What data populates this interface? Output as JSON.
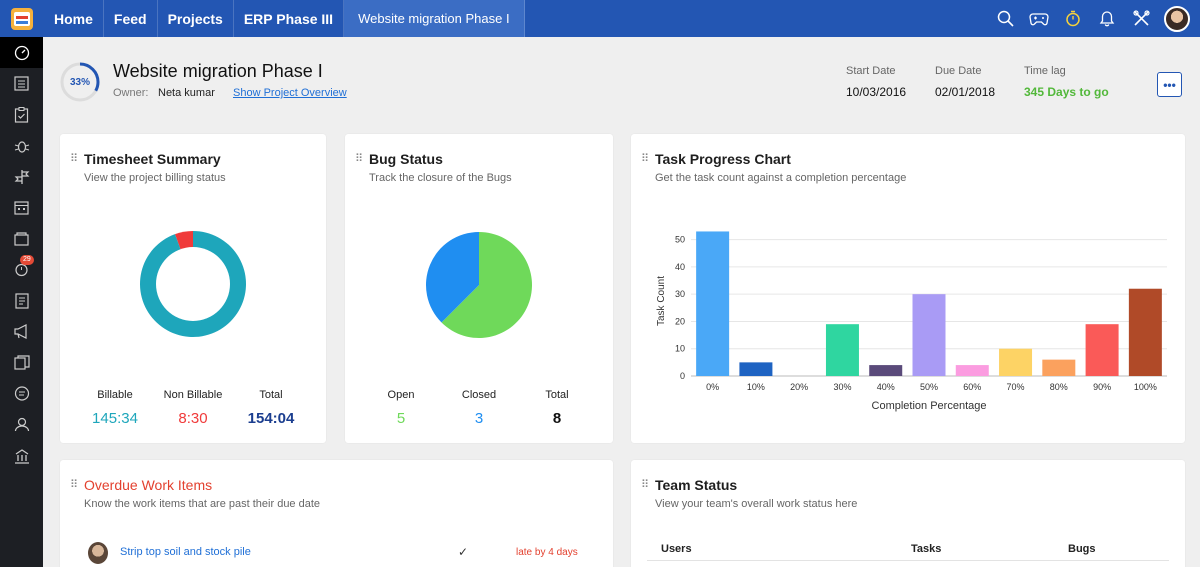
{
  "nav": {
    "items": [
      "Home",
      "Feed",
      "Projects",
      "ERP Phase III",
      "Website migration Phase I"
    ]
  },
  "topbar": {
    "icons": [
      "search-icon",
      "gamepad-icon",
      "timer-icon",
      "bell-icon",
      "tools-icon"
    ]
  },
  "sidebar": {
    "icons": [
      "dashboard-icon",
      "list-icon",
      "checklist-icon",
      "bug-icon",
      "milestone-icon",
      "calendar-icon",
      "folder-icon",
      "timer-icon",
      "invoice-icon",
      "announcement-icon",
      "documents-icon",
      "chat-icon",
      "users-icon",
      "reports-icon"
    ],
    "badge": "29"
  },
  "project": {
    "progress": 0.33,
    "progress_label": "33%",
    "title": "Website migration Phase I",
    "owner_label": "Owner:",
    "owner": "Neta kumar",
    "overview_link": "Show Project Overview",
    "start_label": "Start Date",
    "start": "10/03/2016",
    "due_label": "Due Date",
    "due": "02/01/2018",
    "lag_label": "Time lag",
    "lag": "345 Days to go",
    "more": "•••"
  },
  "timesheet": {
    "title": "Timesheet Summary",
    "subtitle": "View the project billing status",
    "billable_label": "Billable",
    "billable": "145:34",
    "nonbillable_label": "Non Billable",
    "nonbillable": "8:30",
    "total_label": "Total",
    "total": "154:04",
    "colors": {
      "billable": "#1ea6bb",
      "nonbillable": "#f03a3a",
      "total": "#1b3e8f"
    }
  },
  "bugs": {
    "title": "Bug Status",
    "subtitle": "Track the closure of the Bugs",
    "open_label": "Open",
    "open": "5",
    "closed_label": "Closed",
    "closed": "3",
    "total_label": "Total",
    "total": "8",
    "colors": {
      "open": "#6fd95a",
      "closed": "#1f8ef1"
    }
  },
  "task_chart": {
    "title": "Task Progress Chart",
    "subtitle": "Get the task count against a completion percentage"
  },
  "chart_data": {
    "type": "bar",
    "categories": [
      "0%",
      "10%",
      "20%",
      "30%",
      "40%",
      "50%",
      "60%",
      "70%",
      "80%",
      "90%",
      "100%"
    ],
    "values": [
      53,
      5,
      0,
      19,
      4,
      30,
      4,
      10,
      6,
      19,
      32
    ],
    "colors": [
      "#4aa8f7",
      "#1e63c2",
      "#cccccc",
      "#2fd6a0",
      "#5a4a7a",
      "#a99bf5",
      "#fb9ce0",
      "#fdd365",
      "#fba15e",
      "#fa5a58",
      "#b04a28"
    ],
    "xlabel": "Completion Percentage",
    "ylabel": "Task Count",
    "yticks": [
      "0",
      "10",
      "20",
      "30",
      "40",
      "50"
    ],
    "ylim": [
      0,
      55
    ],
    "grid": true
  },
  "overdue": {
    "title": "Overdue Work Items",
    "subtitle": "Know the work items that are past their due date",
    "items": [
      {
        "name": "Strip top soil and stock pile",
        "check": "✓",
        "status": "late by 4 days"
      }
    ]
  },
  "team": {
    "title": "Team Status",
    "subtitle": "View your team's overall work status here",
    "columns": [
      "Users",
      "Tasks",
      "Bugs"
    ]
  }
}
